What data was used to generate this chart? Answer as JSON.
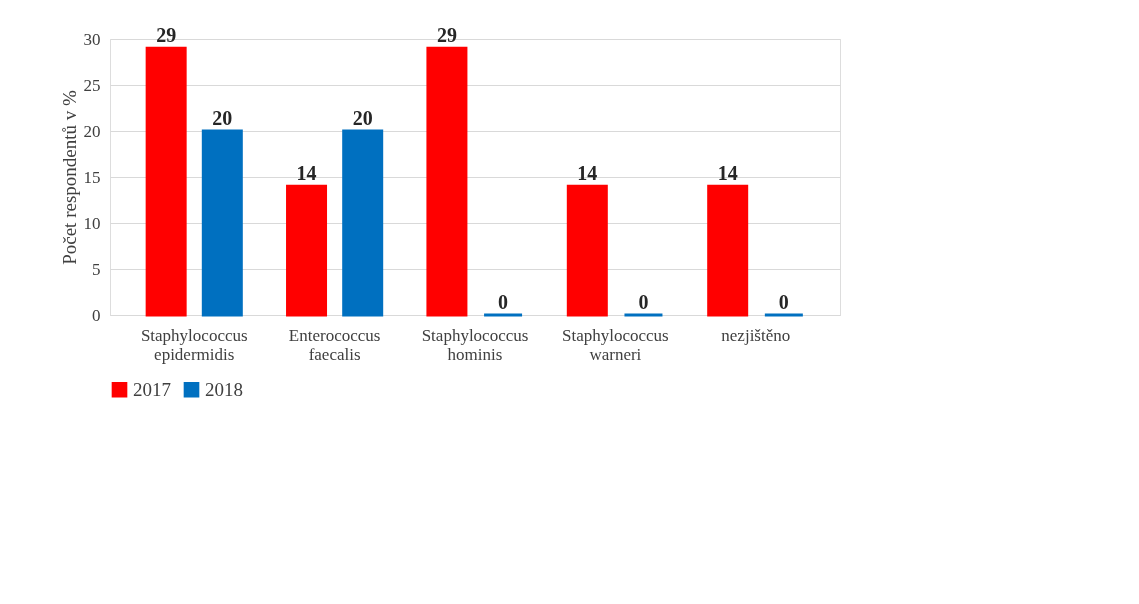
{
  "chart_data": {
    "type": "bar",
    "categories": [
      "Staphylococcus epidermidis",
      "Enterococcus faecalis",
      "Staphylococcus hominis",
      "Staphylococcus warneri",
      "nezjištěno"
    ],
    "series": [
      {
        "name": "2017",
        "color": "#ff0000",
        "values": [
          29,
          14,
          29,
          14,
          14
        ]
      },
      {
        "name": "2018",
        "color": "#0070c0",
        "values": [
          20,
          20,
          0,
          0,
          0
        ]
      }
    ],
    "ylabel": "Počet respondentů v %",
    "ylim": [
      0,
      30
    ],
    "yticks": [
      0,
      5,
      10,
      15,
      20,
      25,
      30
    ],
    "grid": "y",
    "legend": "bottom",
    "data_labels": true
  }
}
